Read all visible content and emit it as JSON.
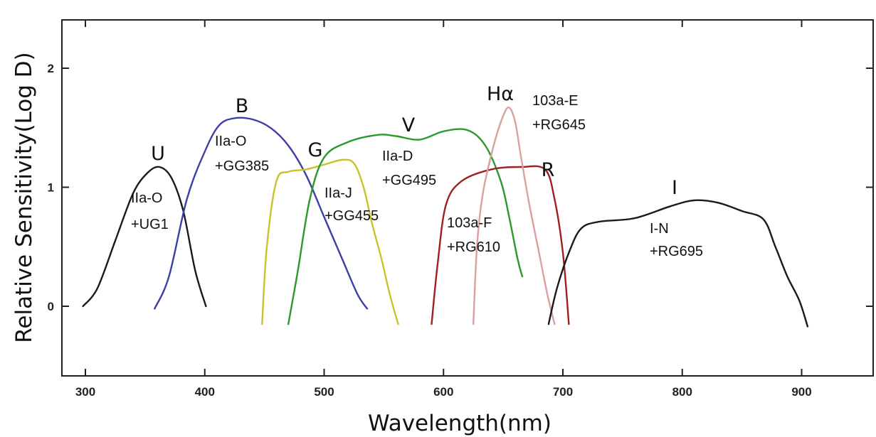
{
  "chart_data": {
    "type": "line",
    "title": "",
    "xlabel": "Wavelength(nm)",
    "ylabel": "Relative Sensitivity(Log D)",
    "xlim": [
      282,
      965
    ],
    "ylim": [
      -0.6,
      2.45
    ],
    "xticks": [
      300,
      400,
      500,
      600,
      700,
      800,
      900
    ],
    "yticks": [
      0,
      1,
      2
    ],
    "grid": false,
    "legend": "none",
    "series": [
      {
        "band": "U",
        "line1": "IIa-O",
        "line2": "+UG1",
        "color": "#1a1a1a",
        "points": [
          [
            298,
            0.0
          ],
          [
            310,
            0.15
          ],
          [
            325,
            0.55
          ],
          [
            340,
            0.95
          ],
          [
            352,
            1.12
          ],
          [
            362,
            1.17
          ],
          [
            372,
            1.08
          ],
          [
            382,
            0.8
          ],
          [
            392,
            0.3
          ],
          [
            401,
            0.0
          ]
        ]
      },
      {
        "band": "B",
        "line1": "IIa-O",
        "line2": "+GG385",
        "color": "#3c3fa8",
        "points": [
          [
            358,
            -0.02
          ],
          [
            370,
            0.25
          ],
          [
            385,
            0.9
          ],
          [
            400,
            1.3
          ],
          [
            412,
            1.52
          ],
          [
            425,
            1.58
          ],
          [
            440,
            1.57
          ],
          [
            455,
            1.5
          ],
          [
            470,
            1.35
          ],
          [
            485,
            1.1
          ],
          [
            500,
            0.75
          ],
          [
            515,
            0.4
          ],
          [
            528,
            0.1
          ],
          [
            536,
            -0.02
          ]
        ]
      },
      {
        "band": "G",
        "line1": "IIa-J",
        "line2": "+GG455",
        "color": "#c9c22a",
        "points": [
          [
            448,
            -0.15
          ],
          [
            452,
            0.5
          ],
          [
            460,
            1.05
          ],
          [
            470,
            1.13
          ],
          [
            485,
            1.15
          ],
          [
            500,
            1.19
          ],
          [
            515,
            1.23
          ],
          [
            525,
            1.2
          ],
          [
            533,
            1.0
          ],
          [
            540,
            0.7
          ],
          [
            548,
            0.4
          ],
          [
            555,
            0.1
          ],
          [
            562,
            -0.15
          ]
        ]
      },
      {
        "band": "V",
        "line1": "IIa-D",
        "line2": "+GG495",
        "color": "#2a9a2a",
        "points": [
          [
            470,
            -0.15
          ],
          [
            478,
            0.3
          ],
          [
            488,
            0.9
          ],
          [
            500,
            1.25
          ],
          [
            520,
            1.38
          ],
          [
            545,
            1.44
          ],
          [
            560,
            1.43
          ],
          [
            580,
            1.4
          ],
          [
            600,
            1.47
          ],
          [
            620,
            1.48
          ],
          [
            635,
            1.35
          ],
          [
            648,
            1.05
          ],
          [
            655,
            0.75
          ],
          [
            662,
            0.4
          ],
          [
            666,
            0.25
          ]
        ]
      },
      {
        "band": "R",
        "line1": "103a-F",
        "line2": "+RG610",
        "color": "#a02020",
        "points": [
          [
            590,
            -0.15
          ],
          [
            595,
            0.35
          ],
          [
            602,
            0.85
          ],
          [
            615,
            1.05
          ],
          [
            640,
            1.15
          ],
          [
            665,
            1.17
          ],
          [
            685,
            1.15
          ],
          [
            693,
            0.9
          ],
          [
            700,
            0.45
          ],
          [
            705,
            -0.15
          ]
        ]
      },
      {
        "band": "Hα",
        "line1": "103a-E",
        "line2": "+RG645",
        "color": "#d9a0a0",
        "points": [
          [
            625,
            -0.15
          ],
          [
            628,
            0.5
          ],
          [
            633,
            0.95
          ],
          [
            642,
            1.35
          ],
          [
            650,
            1.6
          ],
          [
            655,
            1.67
          ],
          [
            660,
            1.55
          ],
          [
            665,
            1.25
          ],
          [
            672,
            0.85
          ],
          [
            680,
            0.45
          ],
          [
            687,
            0.1
          ],
          [
            693,
            -0.15
          ]
        ]
      },
      {
        "band": "I",
        "line1": "I-N",
        "line2": "+RG695",
        "color": "#1a1a1a",
        "points": [
          [
            688,
            -0.15
          ],
          [
            695,
            0.15
          ],
          [
            705,
            0.45
          ],
          [
            715,
            0.65
          ],
          [
            730,
            0.71
          ],
          [
            760,
            0.74
          ],
          [
            790,
            0.84
          ],
          [
            810,
            0.89
          ],
          [
            830,
            0.87
          ],
          [
            850,
            0.8
          ],
          [
            868,
            0.73
          ],
          [
            878,
            0.5
          ],
          [
            888,
            0.25
          ],
          [
            898,
            0.05
          ],
          [
            905,
            -0.17
          ]
        ]
      }
    ]
  }
}
